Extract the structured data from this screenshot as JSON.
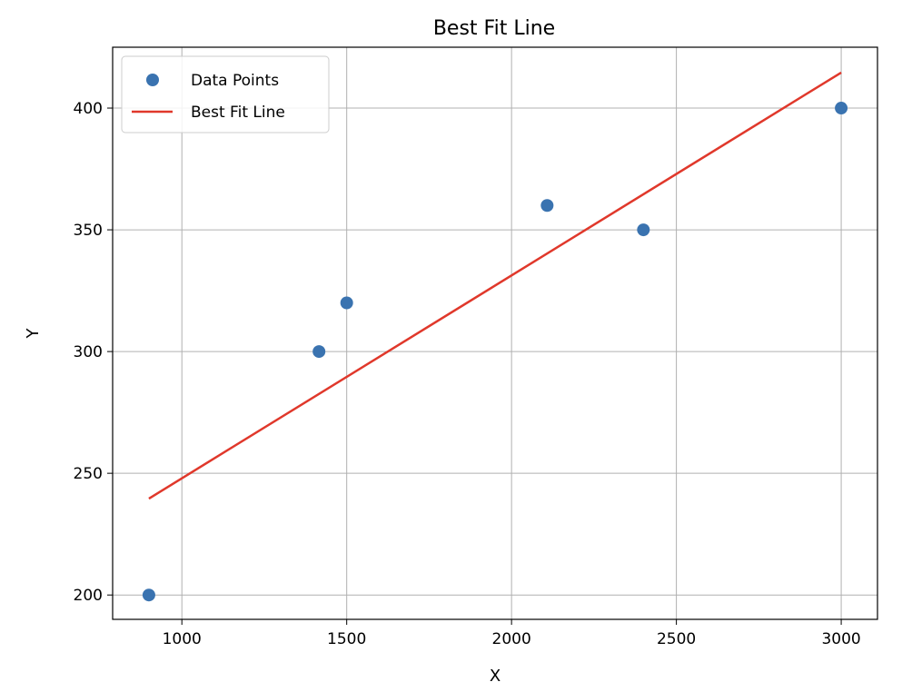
{
  "chart_data": {
    "type": "scatter",
    "title": "Best Fit Line",
    "xlabel": "X",
    "ylabel": "Y",
    "xlim": [
      790,
      3110
    ],
    "ylim": [
      190,
      425
    ],
    "xticks": [
      1000,
      1500,
      2000,
      2500,
      3000
    ],
    "yticks": [
      200,
      250,
      300,
      350,
      400
    ],
    "grid": true,
    "legend_position": "top-left",
    "series": [
      {
        "name": "Data Points",
        "kind": "scatter",
        "color": "#3a73b0",
        "x": [
          900,
          1416,
          1500,
          2108,
          2400,
          3000
        ],
        "y": [
          200,
          300,
          320,
          360,
          350,
          400
        ]
      },
      {
        "name": "Best Fit Line",
        "kind": "line",
        "color": "#e0382b",
        "x": [
          900,
          3000
        ],
        "y": [
          239.6,
          414.6
        ]
      }
    ]
  }
}
